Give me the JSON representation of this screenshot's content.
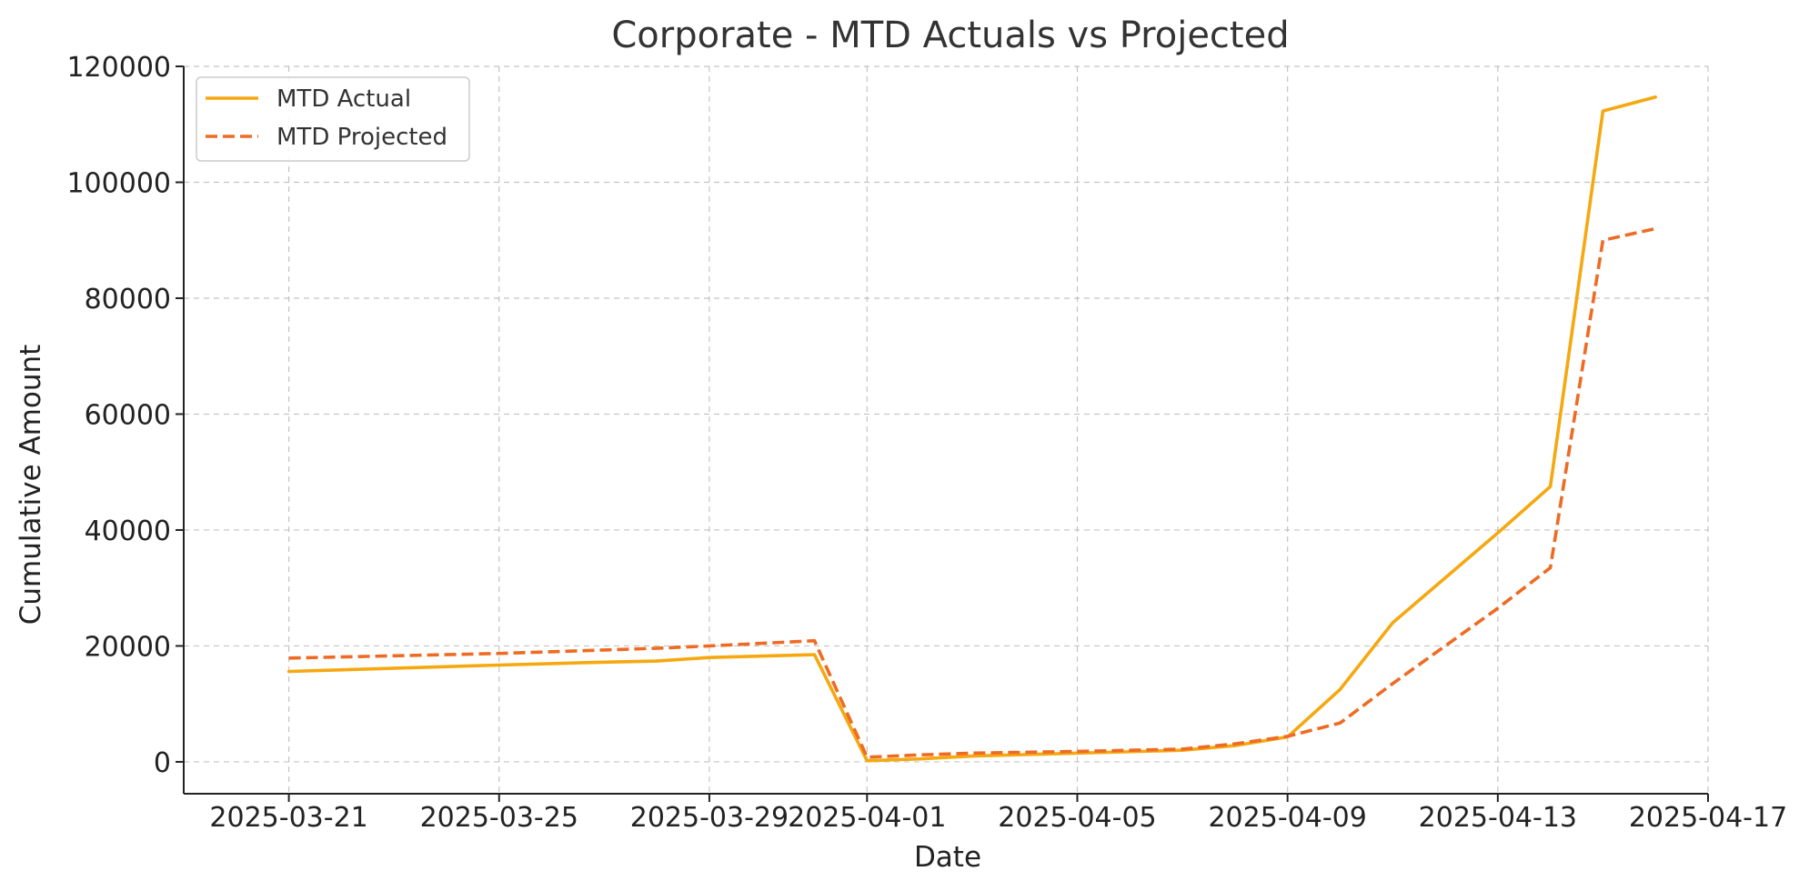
{
  "chart_data": {
    "type": "line",
    "title": "Corporate - MTD Actuals vs Projected",
    "xlabel": "Date",
    "ylabel": "Cumulative Amount",
    "x_ticks": [
      "2025-03-21",
      "2025-03-25",
      "2025-03-29",
      "2025-04-01",
      "2025-04-05",
      "2025-04-09",
      "2025-04-13",
      "2025-04-17"
    ],
    "y_ticks": [
      "0",
      "20000",
      "40000",
      "60000",
      "80000",
      "100000",
      "120000"
    ],
    "xlim": [
      "2025-03-19",
      "2025-04-17"
    ],
    "ylim": [
      -5500,
      120000
    ],
    "grid": true,
    "legend_position": "top-left",
    "series": [
      {
        "name": "MTD Actual",
        "color": "#f5a80f",
        "dash": "solid",
        "points": [
          [
            "2025-03-21",
            15600
          ],
          [
            "2025-03-25",
            16700
          ],
          [
            "2025-03-27",
            17200
          ],
          [
            "2025-03-28",
            17400
          ],
          [
            "2025-03-29",
            18000
          ],
          [
            "2025-03-31",
            18500
          ],
          [
            "2025-04-01",
            200
          ],
          [
            "2025-04-02",
            500
          ],
          [
            "2025-04-03",
            1000
          ],
          [
            "2025-04-05",
            1500
          ],
          [
            "2025-04-07",
            2000
          ],
          [
            "2025-04-08",
            2800
          ],
          [
            "2025-04-09",
            4300
          ],
          [
            "2025-04-10",
            12500
          ],
          [
            "2025-04-11",
            24000
          ],
          [
            "2025-04-13",
            39500
          ],
          [
            "2025-04-14",
            47500
          ],
          [
            "2025-04-15",
            112300
          ],
          [
            "2025-04-16",
            114700
          ]
        ]
      },
      {
        "name": "MTD Projected",
        "color": "#ee6b24",
        "dash": "dashed",
        "points": [
          [
            "2025-03-21",
            17900
          ],
          [
            "2025-03-25",
            18700
          ],
          [
            "2025-03-27",
            19300
          ],
          [
            "2025-03-28",
            19600
          ],
          [
            "2025-03-29",
            20000
          ],
          [
            "2025-03-31",
            20900
          ],
          [
            "2025-04-01",
            800
          ],
          [
            "2025-04-02",
            1200
          ],
          [
            "2025-04-03",
            1500
          ],
          [
            "2025-04-05",
            1800
          ],
          [
            "2025-04-07",
            2200
          ],
          [
            "2025-04-08",
            3100
          ],
          [
            "2025-04-09",
            4400
          ],
          [
            "2025-04-10",
            6700
          ],
          [
            "2025-04-11",
            13500
          ],
          [
            "2025-04-13",
            26500
          ],
          [
            "2025-04-14",
            33500
          ],
          [
            "2025-04-15",
            90000
          ],
          [
            "2025-04-16",
            92000
          ]
        ]
      }
    ]
  }
}
